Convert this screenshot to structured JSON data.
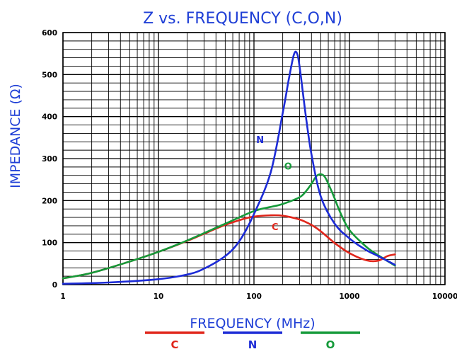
{
  "chart_data": {
    "type": "line",
    "title": "Z vs. FREQUENCY (C,O,N)",
    "xlabel": "FREQUENCY (MHz)",
    "ylabel": "IMPEDANCE (Ω)",
    "x_scale": "log",
    "xlim": [
      1,
      10000
    ],
    "ylim": [
      0,
      600
    ],
    "x_ticks": [
      "1",
      "10",
      "100",
      "1000",
      "10000"
    ],
    "y_ticks": [
      "0",
      "100",
      "200",
      "300",
      "400",
      "500",
      "600"
    ],
    "grid": true,
    "legend_position": "bottom",
    "series": [
      {
        "name": "C",
        "color": "#e0261b",
        "x": [
          1,
          2,
          5,
          10,
          20,
          30,
          50,
          80,
          100,
          150,
          200,
          300,
          400,
          500,
          700,
          1000,
          1500,
          2000,
          2500,
          3000
        ],
        "y": [
          15,
          28,
          55,
          78,
          104,
          121,
          142,
          157,
          162,
          165,
          164,
          155,
          142,
          127,
          99,
          75,
          58,
          57,
          68,
          72
        ]
      },
      {
        "name": "N",
        "color": "#1c2bd6",
        "x": [
          1,
          3,
          10,
          20,
          30,
          50,
          70,
          100,
          150,
          200,
          230,
          260,
          280,
          300,
          350,
          400,
          500,
          700,
          1000,
          1500,
          2000,
          3000
        ],
        "y": [
          2,
          5,
          13,
          24,
          38,
          68,
          103,
          168,
          268,
          408,
          485,
          545,
          552,
          520,
          400,
          310,
          210,
          145,
          110,
          82,
          68,
          47
        ]
      },
      {
        "name": "O",
        "color": "#159a3a",
        "x": [
          1,
          2,
          5,
          10,
          20,
          50,
          100,
          150,
          200,
          300,
          350,
          400,
          450,
          500,
          550,
          600,
          700,
          800,
          1000,
          1500,
          2000,
          3000
        ],
        "y": [
          15,
          28,
          55,
          78,
          105,
          145,
          175,
          185,
          192,
          208,
          222,
          240,
          258,
          263,
          257,
          240,
          205,
          172,
          130,
          90,
          70,
          45
        ]
      }
    ]
  }
}
